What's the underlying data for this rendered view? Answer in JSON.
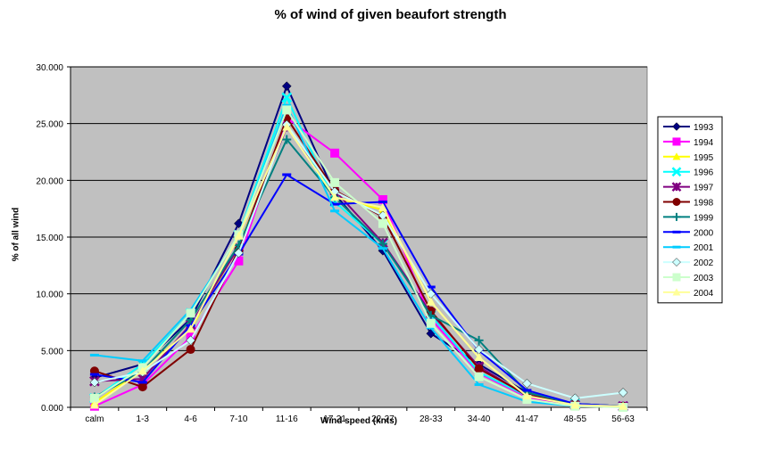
{
  "chart_data": {
    "type": "line",
    "title": "% of wind of given beaufort strength",
    "xlabel": "Wind speed (knts)",
    "ylabel": "% of all wind",
    "categories": [
      "calm",
      "1-3",
      "4-6",
      "7-10",
      "11-16",
      "17-21",
      "22-27",
      "28-33",
      "34-40",
      "41-47",
      "48-55",
      "56-63"
    ],
    "ylim": [
      0,
      30
    ],
    "yticks": [
      "0.000",
      "5.000",
      "10.000",
      "15.000",
      "20.000",
      "25.000",
      "30.000"
    ],
    "grid": true,
    "legend_position": "right",
    "plot_background": "#c0c0c0",
    "series": [
      {
        "name": "1993",
        "color": "#000080",
        "marker": "diamond",
        "values": [
          2.6,
          3.8,
          7.8,
          16.2,
          28.3,
          18.8,
          13.8,
          6.5,
          3.8,
          1.3,
          0.3,
          0.1
        ]
      },
      {
        "name": "1994",
        "color": "#ff00ff",
        "marker": "square",
        "values": [
          0.1,
          2.0,
          6.2,
          12.9,
          25.5,
          22.4,
          18.3,
          7.8,
          3.0,
          0.9,
          0.2,
          0.1
        ]
      },
      {
        "name": "1995",
        "color": "#ffff00",
        "marker": "triangle",
        "values": [
          0.4,
          3.3,
          6.9,
          14.2,
          24.8,
          18.5,
          17.4,
          9.3,
          4.4,
          1.0,
          0.2,
          0.1
        ]
      },
      {
        "name": "1996",
        "color": "#00ffff",
        "marker": "x",
        "values": [
          0.8,
          3.8,
          8.3,
          15.2,
          27.3,
          18.1,
          14.4,
          8.1,
          3.1,
          1.0,
          0.3,
          0.1
        ]
      },
      {
        "name": "1997",
        "color": "#800080",
        "marker": "star",
        "values": [
          2.3,
          2.5,
          7.3,
          14.1,
          24.7,
          19.1,
          14.5,
          8.3,
          3.6,
          1.0,
          0.2,
          0.1
        ]
      },
      {
        "name": "1998",
        "color": "#800000",
        "marker": "circle",
        "values": [
          3.2,
          1.8,
          5.1,
          13.9,
          25.5,
          19.1,
          16.8,
          8.5,
          3.4,
          1.1,
          0.3,
          0.1
        ]
      },
      {
        "name": "1999",
        "color": "#008080",
        "marker": "plus",
        "values": [
          0.9,
          3.2,
          7.7,
          14.3,
          23.6,
          18.5,
          14.4,
          8.1,
          5.9,
          1.3,
          0.3,
          0.1
        ]
      },
      {
        "name": "2000",
        "color": "#0000ff",
        "marker": "dash",
        "values": [
          2.9,
          2.2,
          7.2,
          13.5,
          20.5,
          17.9,
          18.1,
          10.6,
          5.0,
          1.5,
          0.3,
          0.1
        ]
      },
      {
        "name": "2001",
        "color": "#00ccff",
        "marker": "dash",
        "values": [
          4.6,
          4.1,
          8.6,
          15.1,
          26.6,
          17.3,
          14.0,
          7.0,
          2.0,
          0.5,
          0.1,
          0.1
        ]
      },
      {
        "name": "2002",
        "color": "#ccffff",
        "marker": "diamond",
        "values": [
          2.2,
          3.1,
          5.9,
          13.6,
          24.9,
          19.0,
          16.9,
          10.0,
          5.1,
          2.1,
          0.8,
          1.3
        ]
      },
      {
        "name": "2003",
        "color": "#ccffcc",
        "marker": "square",
        "values": [
          0.8,
          3.5,
          8.3,
          15.2,
          26.2,
          19.8,
          16.2,
          7.4,
          2.7,
          0.7,
          0.1,
          0.0
        ]
      },
      {
        "name": "2004",
        "color": "#ffff99",
        "marker": "triangle",
        "values": [
          0.2,
          3.2,
          6.9,
          15.1,
          24.7,
          18.5,
          17.6,
          9.3,
          4.4,
          1.0,
          0.2,
          0.1
        ]
      }
    ]
  }
}
